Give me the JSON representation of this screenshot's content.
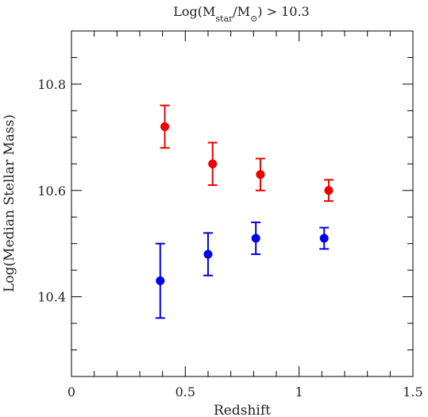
{
  "chart_data": {
    "type": "scatter",
    "title": {
      "text_before": "Log(M",
      "sub1": "star",
      "text_mid": "/M",
      "sub2": "⊙",
      "text_after": ")  >  10.3"
    },
    "xlabel": "Redshift",
    "ylabel": "Log(Median Stellar Mass)",
    "xlim": [
      0,
      1.5
    ],
    "ylim": [
      10.25,
      10.9
    ],
    "x_ticks": [
      0,
      0.5,
      1,
      1.5
    ],
    "x_tick_labels": [
      "0",
      "0.5",
      "1",
      "1.5"
    ],
    "y_ticks": [
      10.4,
      10.6,
      10.8
    ],
    "y_tick_labels": [
      "10.4",
      "10.6",
      "10.8"
    ],
    "x_minor_step": 0.1,
    "y_minor_step": 0.05,
    "grid": false,
    "series": [
      {
        "color": "#ee0000",
        "points": [
          {
            "x": 0.41,
            "y": 10.72,
            "err_low": 10.68,
            "err_high": 10.76
          },
          {
            "x": 0.62,
            "y": 10.65,
            "err_low": 10.61,
            "err_high": 10.69
          },
          {
            "x": 0.83,
            "y": 10.63,
            "err_low": 10.6,
            "err_high": 10.66
          },
          {
            "x": 1.13,
            "y": 10.6,
            "err_low": 10.58,
            "err_high": 10.62
          }
        ]
      },
      {
        "color": "#0000ee",
        "points": [
          {
            "x": 0.39,
            "y": 10.43,
            "err_low": 10.36,
            "err_high": 10.5
          },
          {
            "x": 0.6,
            "y": 10.48,
            "err_low": 10.44,
            "err_high": 10.52
          },
          {
            "x": 0.81,
            "y": 10.51,
            "err_low": 10.48,
            "err_high": 10.54
          },
          {
            "x": 1.11,
            "y": 10.51,
            "err_low": 10.49,
            "err_high": 10.53
          }
        ]
      }
    ]
  }
}
